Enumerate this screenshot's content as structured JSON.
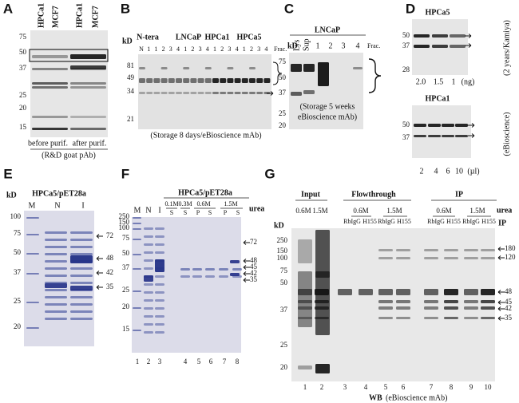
{
  "panels": {
    "A": {
      "label": "A",
      "lanes": [
        "HPCa1",
        "MCF7",
        "HPCa1",
        "MCF7"
      ],
      "markers": [
        75,
        50,
        37,
        25,
        20,
        15
      ],
      "groups": [
        "before purif.",
        "after purif."
      ],
      "caption": "(R&D goat pAb)"
    },
    "B": {
      "label": "B",
      "unit": "kD",
      "groups": [
        "N-tera",
        "LNCaP",
        "HPCa1",
        "HPCa5"
      ],
      "lanes": [
        "N",
        "1",
        "1",
        "2",
        "3",
        "4",
        "1",
        "2",
        "3",
        "4",
        "1",
        "2",
        "3",
        "4",
        "1",
        "2",
        "3",
        "4"
      ],
      "frac": "Frac.",
      "markers": [
        81,
        49,
        34,
        21
      ],
      "caption": "(Storage 8 days/eBioscience mAb)"
    },
    "C": {
      "label": "C",
      "title": "LNCaP",
      "unit": "kD",
      "lanes": [
        "Lys",
        "Sup",
        "1",
        "2",
        "3",
        "4"
      ],
      "frac": "Frac.",
      "markers": [
        75,
        50,
        37,
        25,
        20
      ],
      "caption": [
        "(Storage 5 weeks",
        "eBioscience mAb)"
      ]
    },
    "D": {
      "label": "D",
      "top": {
        "title": "HPCa5",
        "markers": [
          50,
          37,
          28
        ],
        "lanes": [
          "2.0",
          "1.5",
          "1",
          "(ng)"
        ],
        "side": "(2 years/Kamiya)"
      },
      "bottom": {
        "title": "HPCa1",
        "markers": [
          50,
          37
        ],
        "lanes": [
          "2",
          "4",
          "6",
          "10",
          "(µl)"
        ],
        "side": "(eBioscience)"
      }
    },
    "E": {
      "label": "E",
      "unit": "kD",
      "title": "HPCa5/pET28a",
      "lanes": [
        "M",
        "N",
        "I"
      ],
      "markers": [
        100,
        75,
        50,
        37,
        25,
        20
      ],
      "arrows": [
        72,
        48,
        42,
        35
      ]
    },
    "F": {
      "label": "F",
      "title": "HPCa5/pET28a",
      "lanes": [
        "M",
        "N",
        "I"
      ],
      "conc": [
        "0.1M",
        "0.3M",
        "0.6M",
        "1.5M"
      ],
      "urea": "urea",
      "fractions": [
        "S",
        "S",
        "P",
        "S",
        "P",
        "S"
      ],
      "markers": [
        250,
        150,
        100,
        75,
        50,
        37,
        25,
        20,
        15
      ],
      "arrows": [
        72,
        48,
        45,
        42,
        35
      ],
      "numbers": [
        1,
        2,
        3,
        4,
        5,
        6,
        7,
        8
      ]
    },
    "G": {
      "label": "G",
      "headers": [
        "Input",
        "Flowthrough",
        "IP"
      ],
      "conc": [
        "0.6M",
        "1.5M",
        "0.6M",
        "1.5M",
        "0.6M",
        "1.5M"
      ],
      "urea": "urea",
      "antibodies": [
        "RbIgG",
        "H155",
        "RbIgG",
        "H155",
        "RbIgG",
        "H155",
        "RbIgG",
        "H155"
      ],
      "ip": "IP",
      "unit": "kD",
      "markers": [
        250,
        150,
        100,
        75,
        50,
        37,
        25,
        20
      ],
      "arrows": [
        180,
        120,
        48,
        45,
        42,
        35
      ],
      "numbers": [
        1,
        2,
        3,
        4,
        5,
        6,
        7,
        8,
        9,
        10
      ],
      "wb": "WB",
      "wb_note": "(eBioscience mAb)"
    }
  }
}
